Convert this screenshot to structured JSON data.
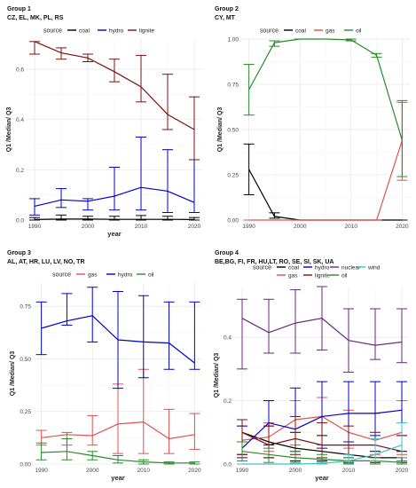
{
  "chart_data": [
    {
      "type": "line",
      "group_title": "Group 1",
      "group_countries": "CZ, EL, MK, PL, RS",
      "legend_title": "source",
      "legend_placement": "top",
      "ylabel": "Q1 /Median/ Q3",
      "xlabel": "year",
      "x": [
        1990,
        1995,
        2000,
        2005,
        2010,
        2015,
        2020
      ],
      "ylim": [
        0,
        0.72
      ],
      "yticks": [
        "0.0",
        "0.2",
        "0.4",
        "0.6"
      ],
      "yticks_values": [
        0,
        0.2,
        0.4,
        0.6
      ],
      "xticks": [
        1990,
        2000,
        2010,
        2020
      ],
      "series": [
        {
          "name": "coal",
          "color": "#000000",
          "median": [
            0.002,
            0.004,
            0.004,
            0.003,
            0.003,
            0.003,
            0.002
          ],
          "q1": [
            0.0,
            0.0,
            0.0,
            0.0,
            0.0,
            0.0,
            0.0
          ],
          "q3": [
            0.01,
            0.02,
            0.015,
            0.015,
            0.018,
            0.015,
            0.01
          ]
        },
        {
          "name": "hydro",
          "color": "#0000cc",
          "median": [
            0.055,
            0.08,
            0.075,
            0.095,
            0.13,
            0.115,
            0.07
          ],
          "q1": [
            0.02,
            0.05,
            0.04,
            0.04,
            0.04,
            0.03,
            0.03
          ],
          "q3": [
            0.085,
            0.125,
            0.085,
            0.21,
            0.33,
            0.28,
            0.24
          ]
        },
        {
          "name": "lignite",
          "color": "#7a1010",
          "median": [
            0.71,
            0.665,
            0.645,
            0.59,
            0.53,
            0.42,
            0.36
          ],
          "q1": [
            0.66,
            0.64,
            0.63,
            0.55,
            0.47,
            0.36,
            0.24
          ],
          "q3": [
            0.71,
            0.685,
            0.66,
            0.64,
            0.655,
            0.58,
            0.49
          ]
        }
      ]
    },
    {
      "type": "line",
      "group_title": "Group 2",
      "group_countries": "CY, MT",
      "legend_title": "source",
      "legend_placement": "top",
      "ylabel": "Q1 /Median/ Q3",
      "xlabel": "",
      "x": [
        1990,
        1995,
        2000,
        2005,
        2010,
        2015,
        2020
      ],
      "ylim": [
        0,
        1.0
      ],
      "yticks": [
        "0.00",
        "0.25",
        "0.50",
        "0.75",
        "1.00"
      ],
      "yticks_values": [
        0,
        0.25,
        0.5,
        0.75,
        1.0
      ],
      "xticks": [
        1990,
        2000,
        2010,
        2020
      ],
      "series": [
        {
          "name": "coal",
          "color": "#000000",
          "median": [
            0.28,
            0.02,
            0.0,
            0.0,
            0.0,
            0.0,
            0.0
          ],
          "q1": [
            0.14,
            0.01,
            0.0,
            0.0,
            0.0,
            0.0,
            0.0
          ],
          "q3": [
            0.42,
            0.04,
            0.0,
            0.0,
            0.0,
            0.0,
            0.0
          ]
        },
        {
          "name": "gas",
          "color": "#e05050",
          "median": [
            0.0,
            0.0,
            0.0,
            0.0,
            0.0,
            0.0,
            0.44
          ],
          "q1": [
            0.0,
            0.0,
            0.0,
            0.0,
            0.0,
            0.0,
            0.22
          ],
          "q3": [
            0.0,
            0.0,
            0.0,
            0.0,
            0.0,
            0.0,
            0.65
          ]
        },
        {
          "name": "oil",
          "color": "#2a8a2a",
          "median": [
            0.72,
            0.98,
            1.0,
            1.0,
            0.995,
            0.91,
            0.44
          ],
          "q1": [
            0.58,
            0.96,
            1.0,
            1.0,
            0.99,
            0.9,
            0.24
          ],
          "q3": [
            0.86,
            0.99,
            1.0,
            1.0,
            1.0,
            0.92,
            0.66
          ]
        }
      ]
    },
    {
      "type": "line",
      "group_title": "Group 3",
      "group_countries": "AL, AT, HR, LU, LV, NO, TR",
      "legend_title": "source",
      "legend_placement": "top",
      "ylabel": "Q1 /Median/ Q3",
      "xlabel": "year",
      "x": [
        1990,
        1995,
        2000,
        2005,
        2010,
        2015,
        2020
      ],
      "ylim": [
        0,
        0.86
      ],
      "yticks": [
        "0.00",
        "0.25",
        "0.50",
        "0.75"
      ],
      "yticks_values": [
        0,
        0.25,
        0.5,
        0.75
      ],
      "xticks": [
        1990,
        2000,
        2010,
        2020
      ],
      "series": [
        {
          "name": "gas",
          "color": "#e05050",
          "median": [
            0.125,
            0.14,
            0.135,
            0.19,
            0.2,
            0.12,
            0.14
          ],
          "q1": [
            0.09,
            0.09,
            0.09,
            0.05,
            0.05,
            0.05,
            0.07
          ],
          "q3": [
            0.16,
            0.15,
            0.23,
            0.38,
            0.45,
            0.26,
            0.24
          ]
        },
        {
          "name": "hydro",
          "color": "#0000cc",
          "median": [
            0.645,
            0.68,
            0.705,
            0.59,
            0.58,
            0.575,
            0.48
          ],
          "q1": [
            0.52,
            0.66,
            0.58,
            0.36,
            0.41,
            0.45,
            0.45
          ],
          "q3": [
            0.77,
            0.81,
            0.84,
            0.82,
            0.8,
            0.77,
            0.77
          ]
        },
        {
          "name": "oil",
          "color": "#2a8a2a",
          "median": [
            0.055,
            0.06,
            0.04,
            0.02,
            0.01,
            0.005,
            0.005
          ],
          "q1": [
            0.02,
            0.02,
            0.02,
            0.005,
            0.0,
            0.0,
            0.0
          ],
          "q3": [
            0.1,
            0.12,
            0.06,
            0.04,
            0.02,
            0.01,
            0.01
          ]
        }
      ]
    },
    {
      "type": "line",
      "group_title": "Group 4",
      "group_countries": "BE,BG, FI, FR, HU,LT, RO, SE, SI, SK, UA",
      "legend_title": "source",
      "legend_placement": "top",
      "ylabel": "Q1 /Median/ Q3",
      "xlabel": "year",
      "x": [
        1990,
        1995,
        2000,
        2005,
        2010,
        2015,
        2020
      ],
      "ylim": [
        0,
        0.56
      ],
      "yticks": [
        "0.0",
        "0.2",
        "0.4"
      ],
      "yticks_values": [
        0,
        0.2,
        0.4
      ],
      "xticks": [
        1990,
        2000,
        2010,
        2020
      ],
      "series": [
        {
          "name": "coal",
          "color": "#000000",
          "median": [
            0.1,
            0.07,
            0.05,
            0.04,
            0.03,
            0.02,
            0.02
          ],
          "q1": [
            0.03,
            0.02,
            0.01,
            0.01,
            0.005,
            0.005,
            0.005
          ],
          "q3": [
            0.14,
            0.12,
            0.1,
            0.09,
            0.06,
            0.04,
            0.04
          ]
        },
        {
          "name": "gas",
          "color": "#e05050",
          "median": [
            0.075,
            0.085,
            0.14,
            0.15,
            0.1,
            0.075,
            0.1
          ],
          "q1": [
            0.03,
            0.04,
            0.06,
            0.06,
            0.05,
            0.03,
            0.03
          ],
          "q3": [
            0.12,
            0.13,
            0.2,
            0.21,
            0.17,
            0.16,
            0.2
          ]
        },
        {
          "name": "hydro",
          "color": "#0000cc",
          "median": [
            0.05,
            0.13,
            0.11,
            0.15,
            0.16,
            0.16,
            0.17
          ],
          "q1": [
            0.02,
            0.06,
            0.04,
            0.05,
            0.07,
            0.09,
            0.09
          ],
          "q3": [
            0.12,
            0.2,
            0.24,
            0.26,
            0.26,
            0.26,
            0.26
          ]
        },
        {
          "name": "lignite",
          "color": "#7a1010",
          "median": [
            0.1,
            0.06,
            0.08,
            0.06,
            0.06,
            0.06,
            0.04
          ],
          "q1": [
            0.03,
            0.02,
            0.03,
            0.02,
            0.02,
            0.02,
            0.02
          ],
          "q3": [
            0.14,
            0.12,
            0.15,
            0.13,
            0.12,
            0.1,
            0.09
          ]
        },
        {
          "name": "nuclear",
          "color": "#6a2a7a",
          "median": [
            0.46,
            0.415,
            0.445,
            0.46,
            0.39,
            0.375,
            0.385
          ],
          "q1": [
            0.3,
            0.35,
            0.35,
            0.36,
            0.29,
            0.33,
            0.32
          ],
          "q3": [
            0.52,
            0.52,
            0.55,
            0.56,
            0.49,
            0.49,
            0.49
          ]
        },
        {
          "name": "oil",
          "color": "#2a8a2a",
          "median": [
            0.04,
            0.03,
            0.02,
            0.015,
            0.01,
            0.01,
            0.005
          ],
          "q1": [
            0.01,
            0.005,
            0.005,
            0.005,
            0.0,
            0.0,
            0.0
          ],
          "q3": [
            0.07,
            0.05,
            0.04,
            0.03,
            0.02,
            0.02,
            0.01
          ]
        },
        {
          "name": "wind",
          "color": "#40c0c0",
          "median": [
            0.0,
            0.0,
            0.0,
            0.002,
            0.01,
            0.03,
            0.06
          ],
          "q1": [
            0.0,
            0.0,
            0.0,
            0.0,
            0.003,
            0.01,
            0.02
          ],
          "q3": [
            0.0,
            0.0,
            0.001,
            0.005,
            0.03,
            0.08,
            0.13
          ]
        }
      ]
    }
  ]
}
